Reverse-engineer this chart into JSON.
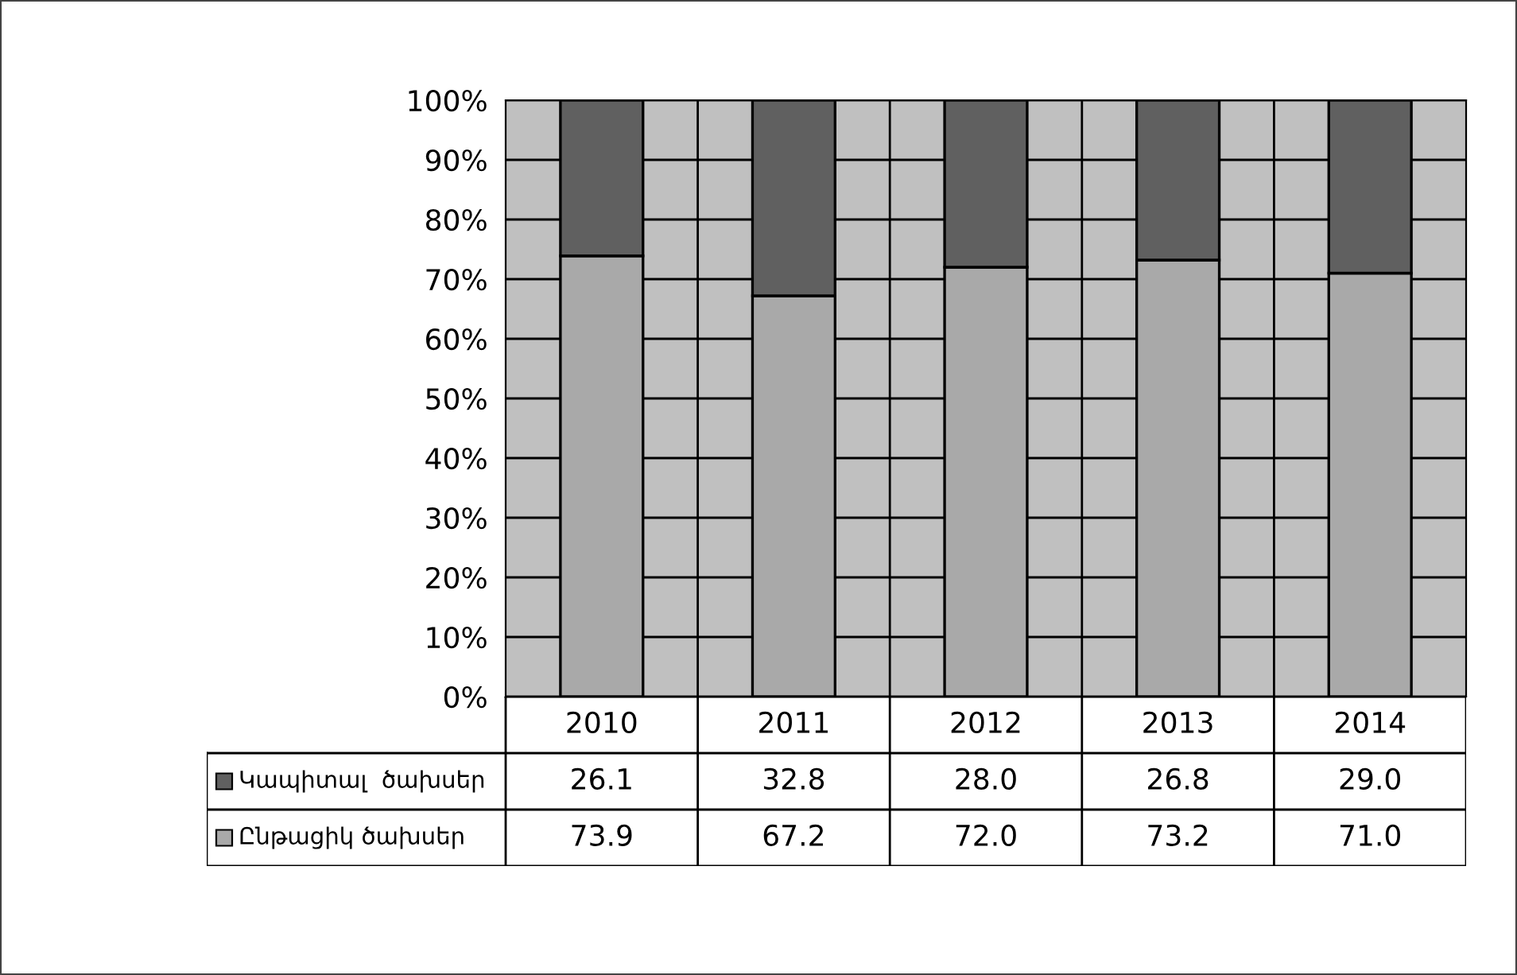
{
  "chart_data": {
    "type": "bar",
    "stacked": true,
    "categories": [
      "2010",
      "2011",
      "2012",
      "2013",
      "2014"
    ],
    "series": [
      {
        "name": "Ընթացիկ ծախսեր",
        "color": "#a9a9a9",
        "values": [
          73.9,
          67.2,
          72.0,
          73.2,
          71.0
        ],
        "value_labels": [
          "73.9",
          "67.2",
          "72.0",
          "73.2",
          "71.0"
        ]
      },
      {
        "name": "Կապիտալ  ծախսեր",
        "color": "#606060",
        "values": [
          26.1,
          32.8,
          28.0,
          26.8,
          29.0
        ],
        "value_labels": [
          "26.1",
          "32.8",
          "28.0",
          "26.8",
          "29.0"
        ]
      }
    ],
    "ylim": [
      0,
      100
    ],
    "yticks": [
      {
        "value": 0,
        "label": "0%"
      },
      {
        "value": 10,
        "label": "10%"
      },
      {
        "value": 20,
        "label": "20%"
      },
      {
        "value": 30,
        "label": "30%"
      },
      {
        "value": 40,
        "label": "40%"
      },
      {
        "value": 50,
        "label": "50%"
      },
      {
        "value": 60,
        "label": "60%"
      },
      {
        "value": 70,
        "label": "70%"
      },
      {
        "value": 80,
        "label": "80%"
      },
      {
        "value": 90,
        "label": "90%"
      },
      {
        "value": 100,
        "label": "100%"
      }
    ],
    "grid": "y",
    "legend": "bottom"
  }
}
